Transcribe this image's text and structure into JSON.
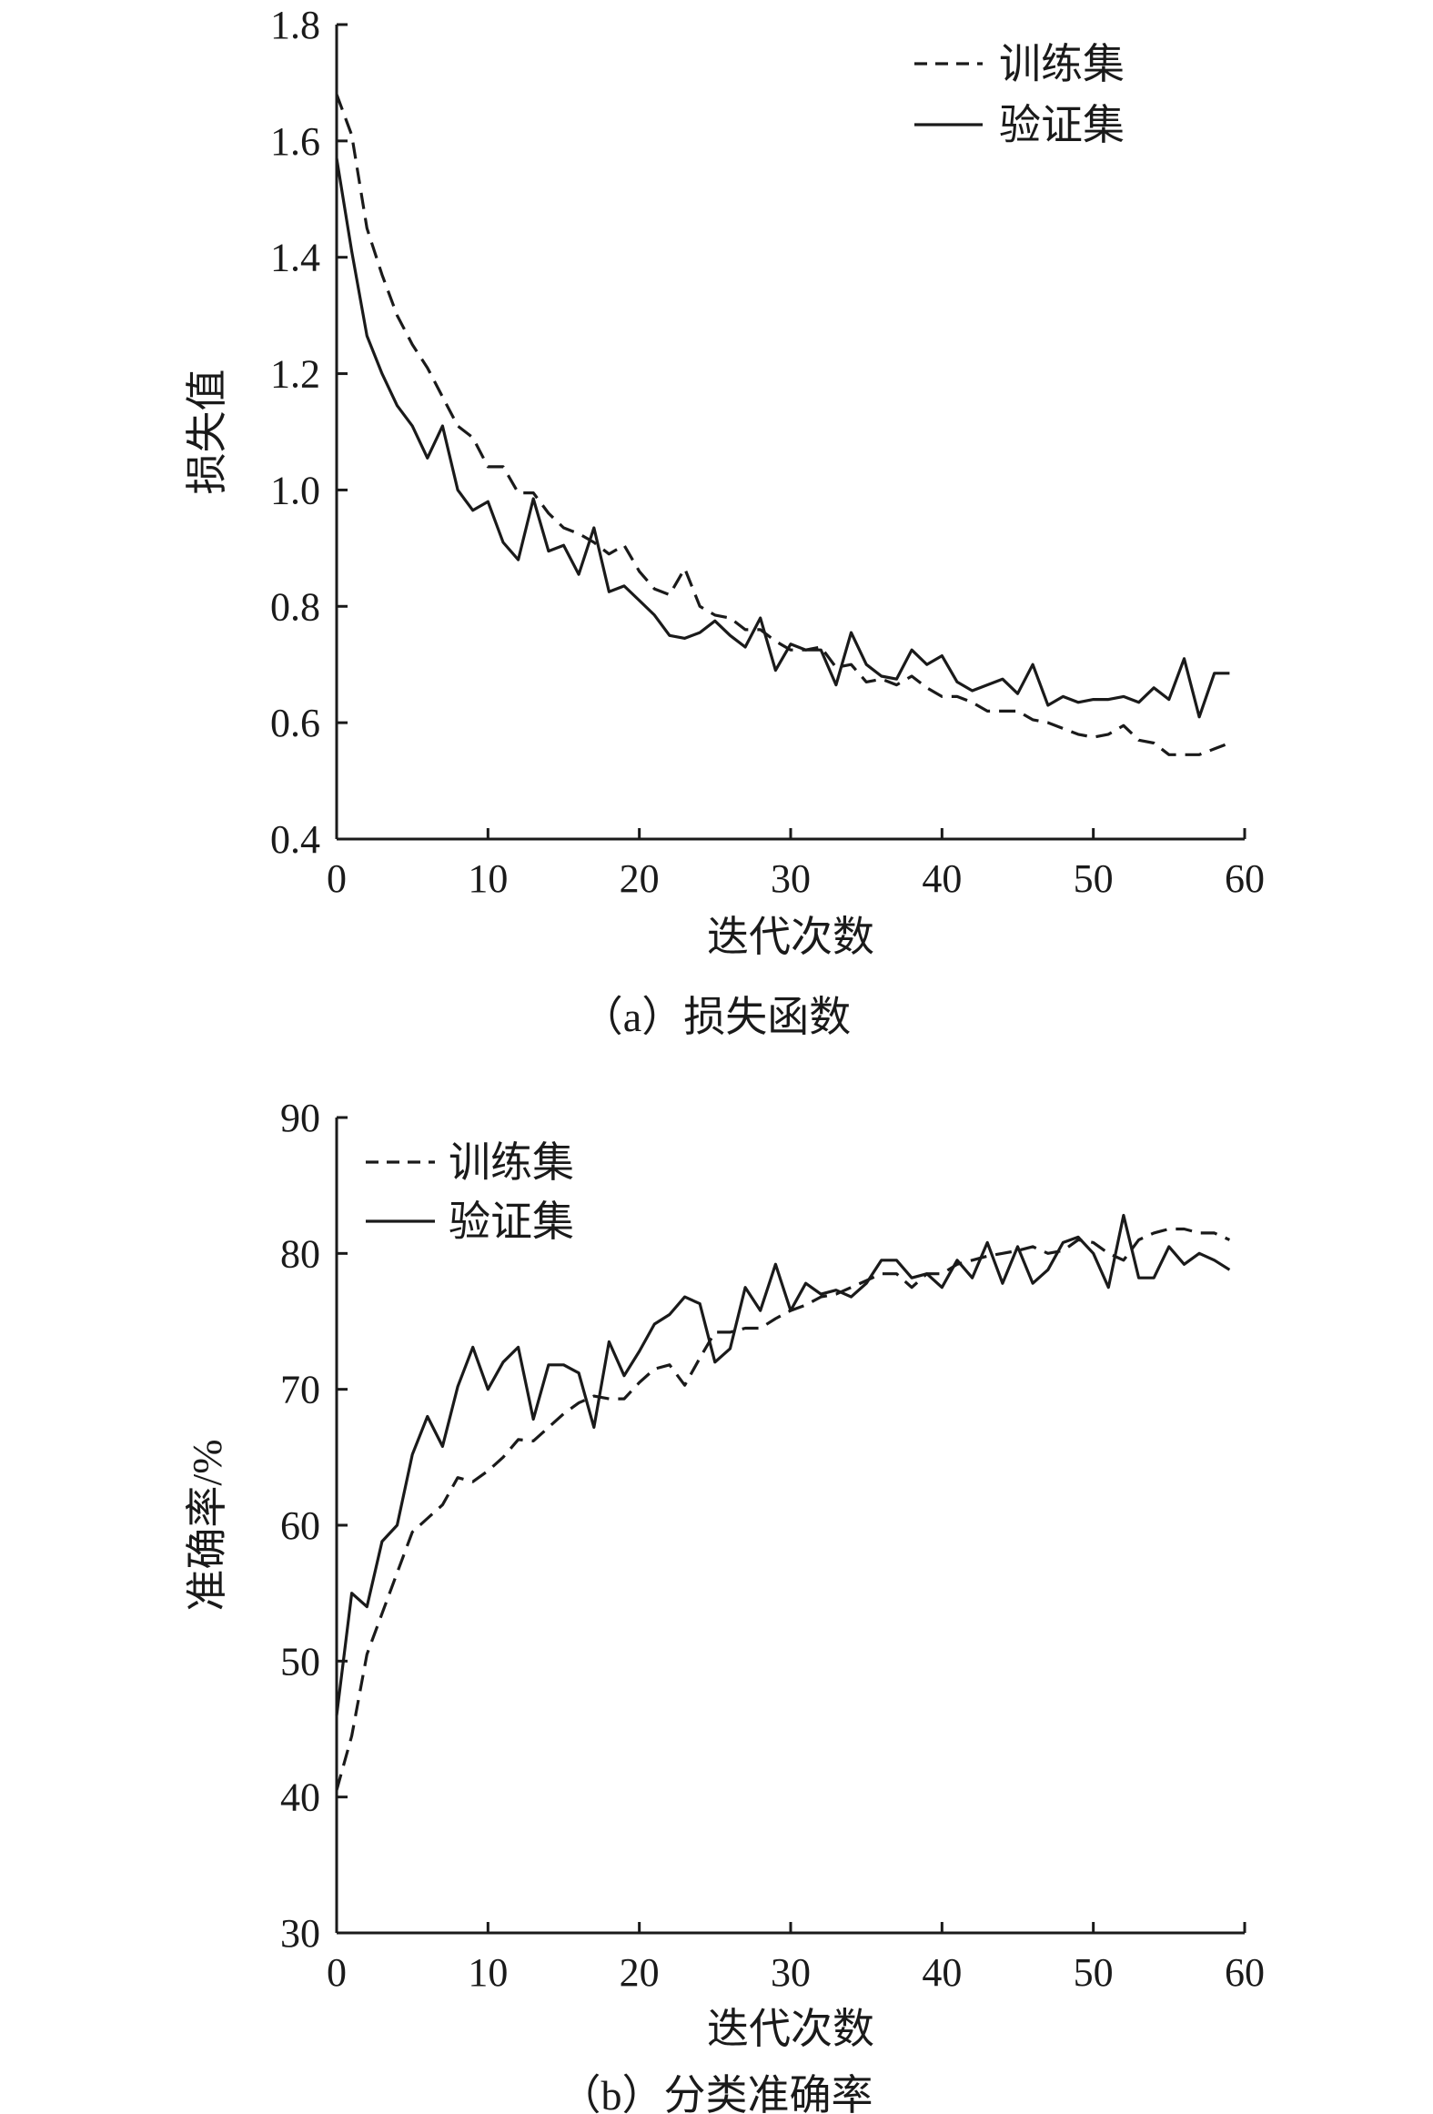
{
  "chart_data": [
    {
      "type": "line",
      "caption": "（a）损失函数",
      "xlabel": "迭代次数",
      "ylabel": "损失值",
      "xlim": [
        0,
        60
      ],
      "ylim": [
        0.4,
        1.8
      ],
      "xticks": [
        0,
        10,
        20,
        30,
        40,
        50,
        60
      ],
      "yticks": [
        0.4,
        0.6,
        0.8,
        1.0,
        1.2,
        1.4,
        1.6,
        1.8
      ],
      "xtick_labels": [
        "0",
        "10",
        "20",
        "30",
        "40",
        "50",
        "60"
      ],
      "ytick_labels": [
        "0.4",
        "0.6",
        "0.8",
        "1.0",
        "1.2",
        "1.4",
        "1.6",
        "1.8"
      ],
      "grid": false,
      "legend_position": "top-right",
      "series": [
        {
          "name": "训练集",
          "style": "dashed",
          "x": [
            0,
            1,
            2,
            3,
            4,
            5,
            6,
            7,
            8,
            9,
            10,
            11,
            12,
            13,
            14,
            15,
            16,
            17,
            18,
            19,
            20,
            21,
            22,
            23,
            24,
            25,
            26,
            27,
            28,
            29,
            30,
            31,
            32,
            33,
            34,
            35,
            36,
            37,
            38,
            39,
            40,
            41,
            42,
            43,
            44,
            45,
            46,
            47,
            48,
            49,
            50,
            51,
            52,
            53,
            54,
            55,
            56,
            57,
            58,
            59
          ],
          "y": [
            1.68,
            1.61,
            1.45,
            1.37,
            1.3,
            1.25,
            1.21,
            1.16,
            1.11,
            1.09,
            1.04,
            1.04,
            0.995,
            0.995,
            0.96,
            0.935,
            0.925,
            0.91,
            0.89,
            0.905,
            0.86,
            0.83,
            0.82,
            0.865,
            0.8,
            0.785,
            0.78,
            0.76,
            0.76,
            0.74,
            0.725,
            0.725,
            0.73,
            0.695,
            0.7,
            0.67,
            0.675,
            0.665,
            0.68,
            0.66,
            0.645,
            0.645,
            0.635,
            0.62,
            0.62,
            0.62,
            0.605,
            0.6,
            0.59,
            0.58,
            0.575,
            0.58,
            0.595,
            0.57,
            0.565,
            0.545,
            0.545,
            0.545,
            0.555,
            0.565
          ]
        },
        {
          "name": "验证集",
          "style": "solid",
          "x": [
            0,
            1,
            2,
            3,
            4,
            5,
            6,
            7,
            8,
            9,
            10,
            11,
            12,
            13,
            14,
            15,
            16,
            17,
            18,
            19,
            20,
            21,
            22,
            23,
            24,
            25,
            26,
            27,
            28,
            29,
            30,
            31,
            32,
            33,
            34,
            35,
            36,
            37,
            38,
            39,
            40,
            41,
            42,
            43,
            44,
            45,
            46,
            47,
            48,
            49,
            50,
            51,
            52,
            53,
            54,
            55,
            56,
            57,
            58,
            59
          ],
          "y": [
            1.57,
            1.41,
            1.265,
            1.2,
            1.145,
            1.11,
            1.055,
            1.11,
            1.0,
            0.965,
            0.98,
            0.91,
            0.88,
            0.985,
            0.895,
            0.905,
            0.855,
            0.935,
            0.825,
            0.835,
            0.81,
            0.785,
            0.75,
            0.745,
            0.755,
            0.775,
            0.75,
            0.73,
            0.78,
            0.69,
            0.735,
            0.725,
            0.725,
            0.665,
            0.755,
            0.7,
            0.68,
            0.675,
            0.725,
            0.7,
            0.715,
            0.67,
            0.655,
            0.665,
            0.675,
            0.65,
            0.7,
            0.63,
            0.645,
            0.635,
            0.64,
            0.64,
            0.645,
            0.635,
            0.66,
            0.64,
            0.71,
            0.61,
            0.685,
            0.685
          ]
        }
      ]
    },
    {
      "type": "line",
      "caption": "（b）分类准确率",
      "xlabel": "迭代次数",
      "ylabel": "准确率/%",
      "xlim": [
        0,
        60
      ],
      "ylim": [
        30,
        90
      ],
      "xticks": [
        0,
        10,
        20,
        30,
        40,
        50,
        60
      ],
      "yticks": [
        30,
        40,
        50,
        60,
        70,
        80,
        90
      ],
      "xtick_labels": [
        "0",
        "10",
        "20",
        "30",
        "40",
        "50",
        "60"
      ],
      "ytick_labels": [
        "30",
        "40",
        "50",
        "60",
        "70",
        "80",
        "90"
      ],
      "grid": false,
      "legend_position": "top-left",
      "series": [
        {
          "name": "训练集",
          "style": "dashed",
          "x": [
            0,
            1,
            2,
            3,
            4,
            5,
            6,
            7,
            8,
            9,
            10,
            11,
            12,
            13,
            14,
            15,
            16,
            17,
            18,
            19,
            20,
            21,
            22,
            23,
            24,
            25,
            26,
            27,
            28,
            29,
            30,
            31,
            32,
            33,
            34,
            35,
            36,
            37,
            38,
            39,
            40,
            41,
            42,
            43,
            44,
            45,
            46,
            47,
            48,
            49,
            50,
            51,
            52,
            53,
            54,
            55,
            56,
            57,
            58,
            59
          ],
          "y": [
            40.5,
            44.5,
            50.5,
            53.5,
            56.5,
            59.5,
            60.5,
            61.5,
            63.5,
            63.2,
            64.0,
            65.0,
            66.3,
            66.2,
            67.2,
            68.2,
            69.0,
            69.5,
            69.3,
            69.3,
            70.5,
            71.5,
            71.8,
            70.3,
            72.3,
            74.2,
            74.2,
            74.5,
            74.5,
            75.2,
            75.8,
            76.2,
            76.8,
            77.0,
            77.5,
            78.0,
            78.5,
            78.5,
            77.5,
            78.5,
            78.5,
            79.2,
            79.5,
            79.8,
            80.0,
            80.2,
            80.5,
            80.0,
            80.2,
            81.0,
            80.8,
            80.0,
            79.5,
            81.0,
            81.5,
            81.8,
            81.8,
            81.5,
            81.5,
            81.0
          ]
        },
        {
          "name": "验证集",
          "style": "solid",
          "x": [
            0,
            1,
            2,
            3,
            4,
            5,
            6,
            7,
            8,
            9,
            10,
            11,
            12,
            13,
            14,
            15,
            16,
            17,
            18,
            19,
            20,
            21,
            22,
            23,
            24,
            25,
            26,
            27,
            28,
            29,
            30,
            31,
            32,
            33,
            34,
            35,
            36,
            37,
            38,
            39,
            40,
            41,
            42,
            43,
            44,
            45,
            46,
            47,
            48,
            49,
            50,
            51,
            52,
            53,
            54,
            55,
            56,
            57,
            58,
            59
          ],
          "y": [
            46.0,
            55.0,
            54.0,
            58.8,
            60.0,
            65.2,
            68.0,
            65.8,
            70.2,
            73.1,
            70.0,
            72.0,
            73.1,
            67.8,
            71.8,
            71.8,
            71.2,
            67.2,
            73.5,
            71.0,
            72.8,
            74.8,
            75.5,
            76.8,
            76.3,
            72.0,
            73.0,
            77.5,
            75.8,
            79.2,
            75.8,
            77.8,
            77.0,
            77.3,
            76.8,
            77.8,
            79.5,
            79.5,
            78.2,
            78.5,
            77.5,
            79.5,
            78.2,
            80.8,
            77.8,
            80.5,
            77.8,
            78.8,
            80.8,
            81.2,
            80.0,
            77.5,
            82.8,
            78.2,
            78.2,
            80.5,
            79.2,
            80.0,
            79.5,
            78.8
          ]
        }
      ]
    }
  ]
}
